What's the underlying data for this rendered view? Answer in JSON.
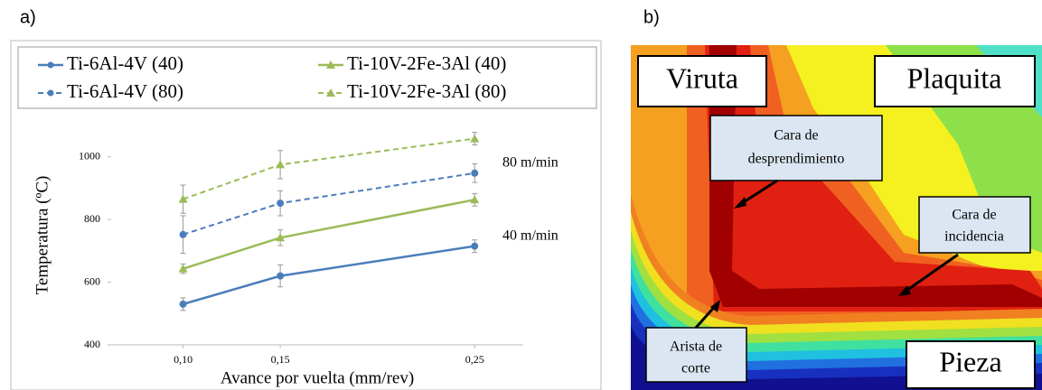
{
  "panels": {
    "a": "a)",
    "b": "b)"
  },
  "chart_data": {
    "type": "line",
    "x_label": "Avance por vuelta (mm/rev)",
    "y_label": "Temperatura (ºC)",
    "x": [
      0.1,
      0.15,
      0.25
    ],
    "xlim": [
      0.063,
      0.275
    ],
    "xticks": [
      {
        "value": 0.1,
        "label": "0,10"
      },
      {
        "value": 0.15,
        "label": "0,15"
      },
      {
        "value": 0.25,
        "label": "0,25"
      }
    ],
    "ylim": [
      400,
      1100
    ],
    "yticks": [
      400,
      600,
      800,
      1000
    ],
    "annotations": [
      "80 m/min",
      "40 m/min"
    ],
    "series": [
      {
        "name": "Ti-6Al-4V (40)",
        "color": "#4a7ebb",
        "dashed": false,
        "values": [
          530,
          620,
          715
        ],
        "errors": [
          20,
          35,
          20
        ]
      },
      {
        "name": "Ti-10V-2Fe-3Al (40)",
        "color": "#9bbb59",
        "dashed": false,
        "values": [
          643,
          742,
          863
        ],
        "errors": [
          15,
          25,
          20
        ]
      },
      {
        "name": "Ti-6Al-4V (80)",
        "color": "#4a7ebb",
        "dashed": true,
        "values": [
          752,
          852,
          948
        ],
        "errors": [
          60,
          40,
          30
        ]
      },
      {
        "name": "Ti-10V-2Fe-3Al (80)",
        "color": "#9bbb59",
        "dashed": true,
        "values": [
          865,
          975,
          1058
        ],
        "errors": [
          45,
          45,
          20
        ]
      }
    ]
  },
  "figure_b": {
    "regions": [
      "Viruta",
      "Plaquita",
      "Pieza"
    ],
    "callouts": [
      [
        "Cara de",
        "desprendimiento"
      ],
      [
        "Cara de",
        "incidencia"
      ],
      [
        "Arista de",
        "corte"
      ]
    ]
  }
}
